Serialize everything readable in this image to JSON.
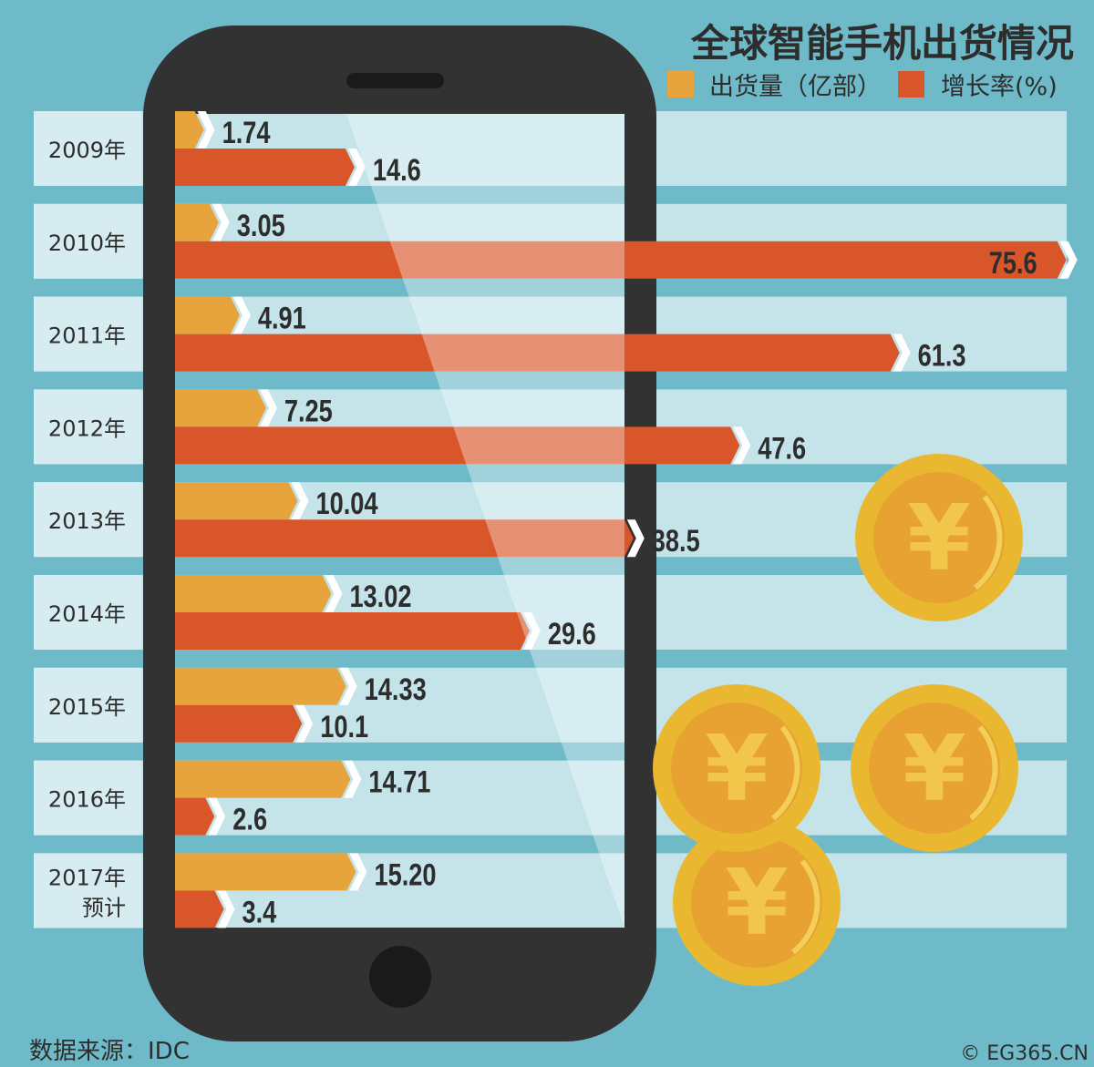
{
  "title": "全球智能手机出货情况",
  "source": "数据来源：IDC",
  "copyright": "© EG365.CN",
  "colors": {
    "background": "#6fbac8",
    "band": "#c4e4ea",
    "label_band": "#d6ecf0",
    "shipments": "#e8a43c",
    "growth": "#d9552a",
    "phone": "#323232",
    "coin": "#e9b830"
  },
  "chart_data": {
    "type": "bar",
    "orientation": "horizontal",
    "title": "全球智能手机出货情况",
    "categories": [
      "2009年",
      "2010年",
      "2011年",
      "2012年",
      "2013年",
      "2014年",
      "2015年",
      "2016年",
      "2017年"
    ],
    "category_notes": [
      "",
      "",
      "",
      "",
      "",
      "",
      "",
      "",
      "预计"
    ],
    "series": [
      {
        "name": "出货量（亿部）",
        "color": "#e8a43c",
        "values": [
          1.74,
          3.05,
          4.91,
          7.25,
          10.04,
          13.02,
          14.33,
          14.71,
          15.2
        ],
        "labels": [
          "1.74",
          "3.05",
          "4.91",
          "7.25",
          "10.04",
          "13.02",
          "14.33",
          "14.71",
          "15.20"
        ]
      },
      {
        "name": "增长率(%)",
        "color": "#d9552a",
        "values": [
          14.6,
          75.6,
          61.3,
          47.6,
          38.5,
          29.6,
          10.1,
          2.6,
          3.4
        ],
        "labels": [
          "14.6",
          "75.6",
          "61.3",
          "47.6",
          "38.5",
          "29.6",
          "10.1",
          "2.6",
          "3.4"
        ]
      }
    ],
    "legend": "top-right",
    "grid": false
  },
  "icons": [
    "smartphone-illustration",
    "yuan-coin-icon"
  ]
}
